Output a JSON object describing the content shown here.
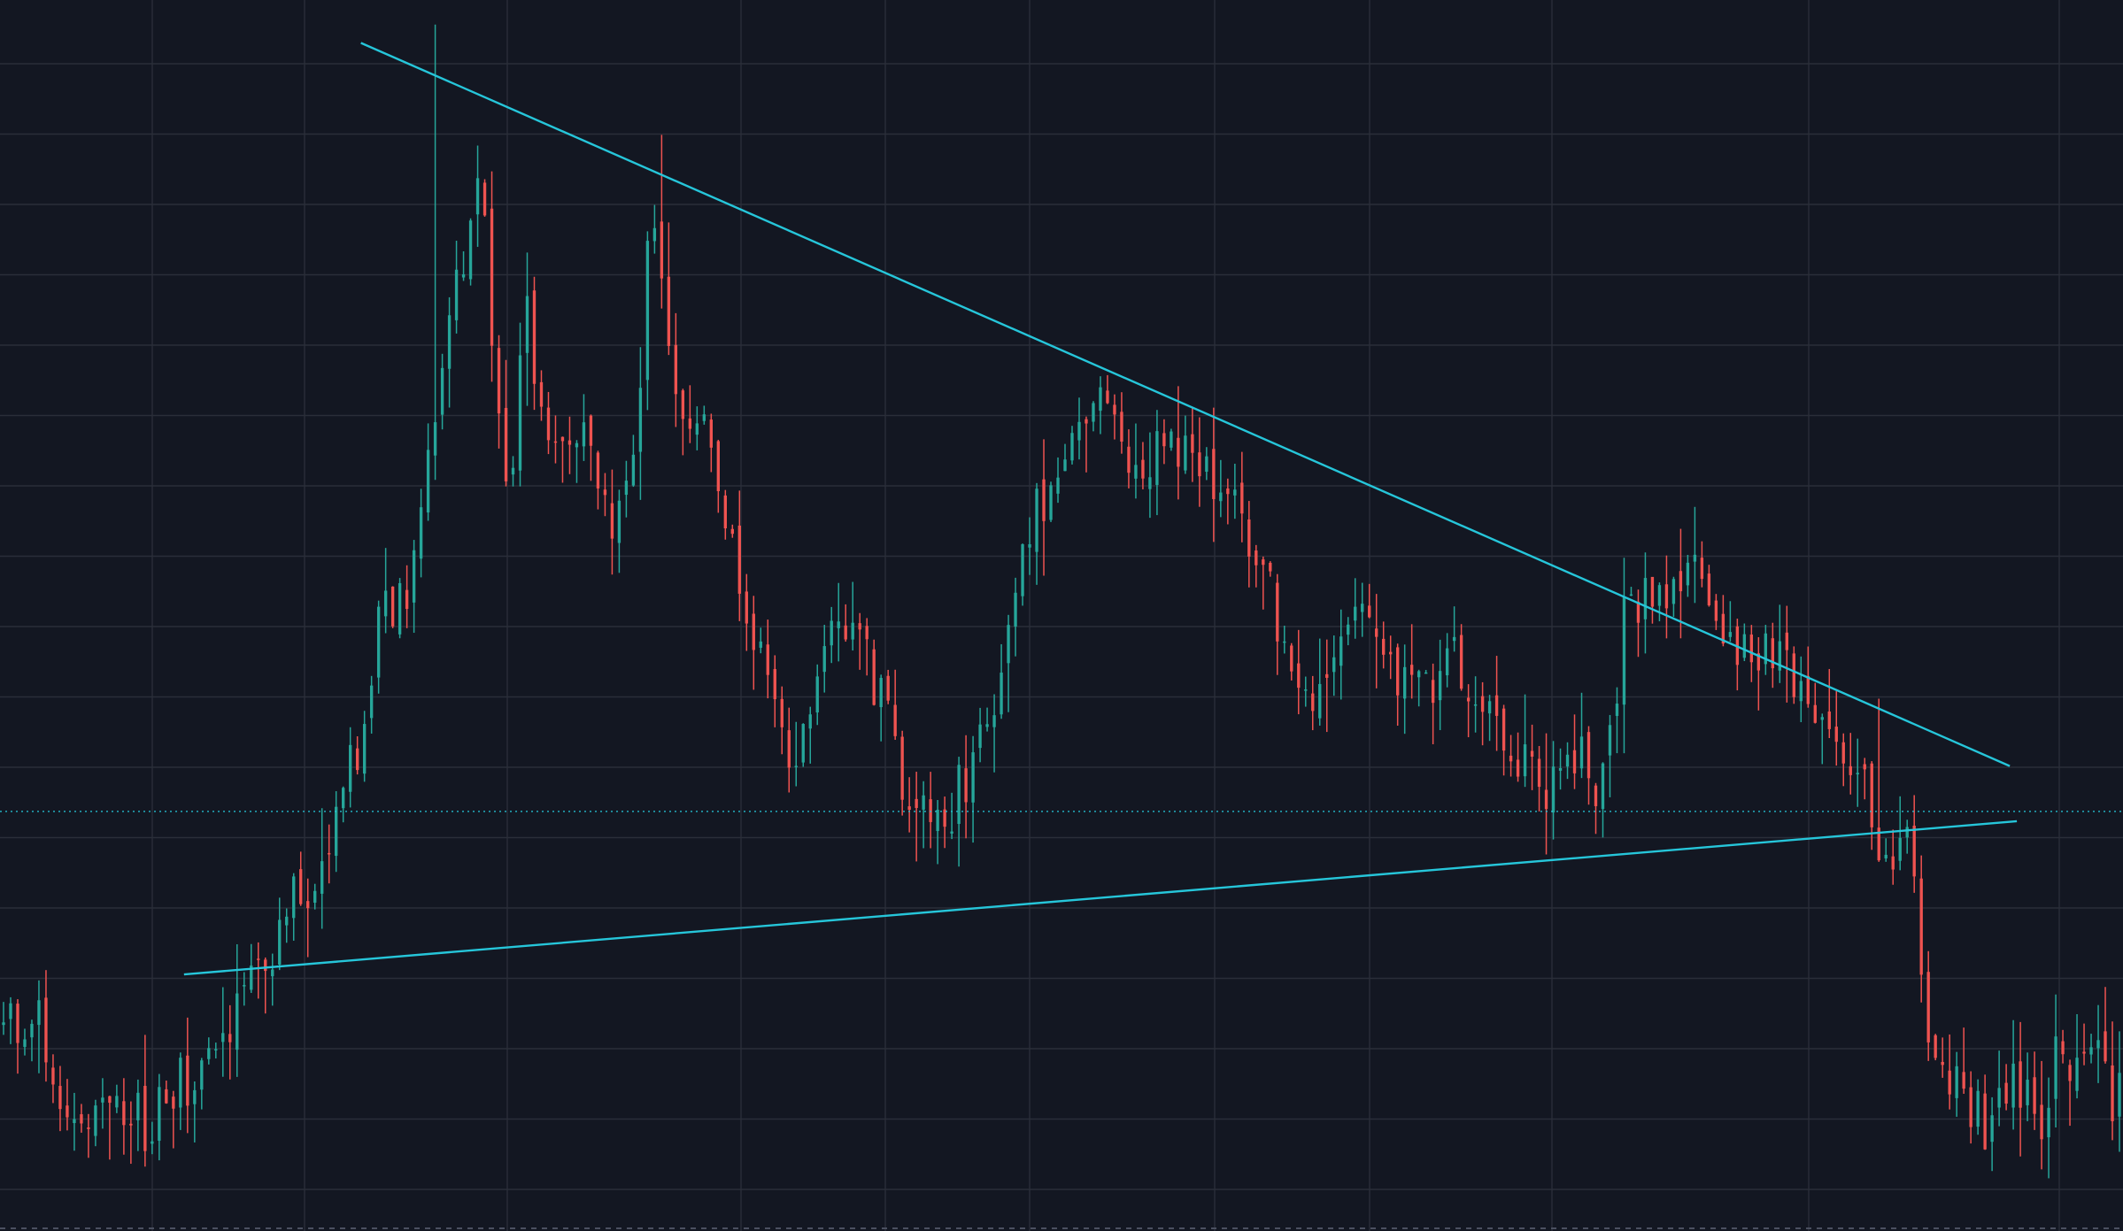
{
  "theme": {
    "background": "#131722",
    "grid": "#2a2e39",
    "up": "#26a69a",
    "down": "#ef5350",
    "trendline": "#26c6da",
    "price_line": "#26c6da"
  },
  "chart_data": {
    "type": "candlestick",
    "title": "",
    "xlabel": "",
    "ylabel": "",
    "grid": true,
    "legend": "none",
    "xlim": [
      0,
      300
    ],
    "ylim": [
      0,
      100
    ],
    "candle_count": 300,
    "close_path": [
      [
        0,
        16
      ],
      [
        5,
        17
      ],
      [
        8,
        11
      ],
      [
        12,
        8
      ],
      [
        16,
        10
      ],
      [
        20,
        8
      ],
      [
        24,
        11
      ],
      [
        28,
        13
      ],
      [
        34,
        17
      ],
      [
        38,
        22
      ],
      [
        42,
        27
      ],
      [
        46,
        30
      ],
      [
        50,
        38
      ],
      [
        54,
        49
      ],
      [
        58,
        52
      ],
      [
        60,
        58
      ],
      [
        64,
        76
      ],
      [
        68,
        85
      ],
      [
        72,
        55
      ],
      [
        74,
        75
      ],
      [
        78,
        62
      ],
      [
        82,
        67
      ],
      [
        86,
        58
      ],
      [
        90,
        64
      ],
      [
        92,
        85
      ],
      [
        96,
        66
      ],
      [
        100,
        65
      ],
      [
        104,
        54
      ],
      [
        108,
        45
      ],
      [
        112,
        38
      ],
      [
        118,
        51
      ],
      [
        124,
        45
      ],
      [
        128,
        36
      ],
      [
        132,
        33
      ],
      [
        136,
        35
      ],
      [
        140,
        43
      ],
      [
        144,
        55
      ],
      [
        150,
        62
      ],
      [
        154,
        67
      ],
      [
        158,
        65
      ],
      [
        162,
        62
      ],
      [
        168,
        65
      ],
      [
        172,
        60
      ],
      [
        178,
        55
      ],
      [
        184,
        42
      ],
      [
        188,
        44
      ],
      [
        192,
        52
      ],
      [
        196,
        47
      ],
      [
        200,
        43
      ],
      [
        204,
        46
      ],
      [
        210,
        44
      ],
      [
        214,
        37
      ],
      [
        218,
        36
      ],
      [
        222,
        38
      ],
      [
        226,
        36
      ],
      [
        230,
        51
      ],
      [
        234,
        51
      ],
      [
        240,
        52
      ],
      [
        246,
        47
      ],
      [
        250,
        46
      ],
      [
        256,
        42
      ],
      [
        262,
        38
      ],
      [
        266,
        30
      ],
      [
        270,
        32
      ],
      [
        272,
        15
      ],
      [
        276,
        12
      ],
      [
        280,
        8
      ],
      [
        286,
        12
      ],
      [
        288,
        6
      ],
      [
        290,
        13
      ],
      [
        294,
        15
      ],
      [
        298,
        11
      ]
    ],
    "spikes": [
      {
        "x": 61,
        "high": 98
      },
      {
        "x": 93,
        "high": 89
      },
      {
        "x": 158,
        "high": 68
      },
      {
        "x": 233,
        "high": 51
      },
      {
        "x": 265,
        "high": 43
      }
    ],
    "trendlines": [
      {
        "name": "descending-resistance",
        "start": [
          51,
          96.5
        ],
        "end": [
          284,
          37.5
        ]
      },
      {
        "name": "ascending-support",
        "start": [
          26,
          20.5
        ],
        "end": [
          285,
          33.0
        ]
      }
    ],
    "price_line": 33.8
  }
}
